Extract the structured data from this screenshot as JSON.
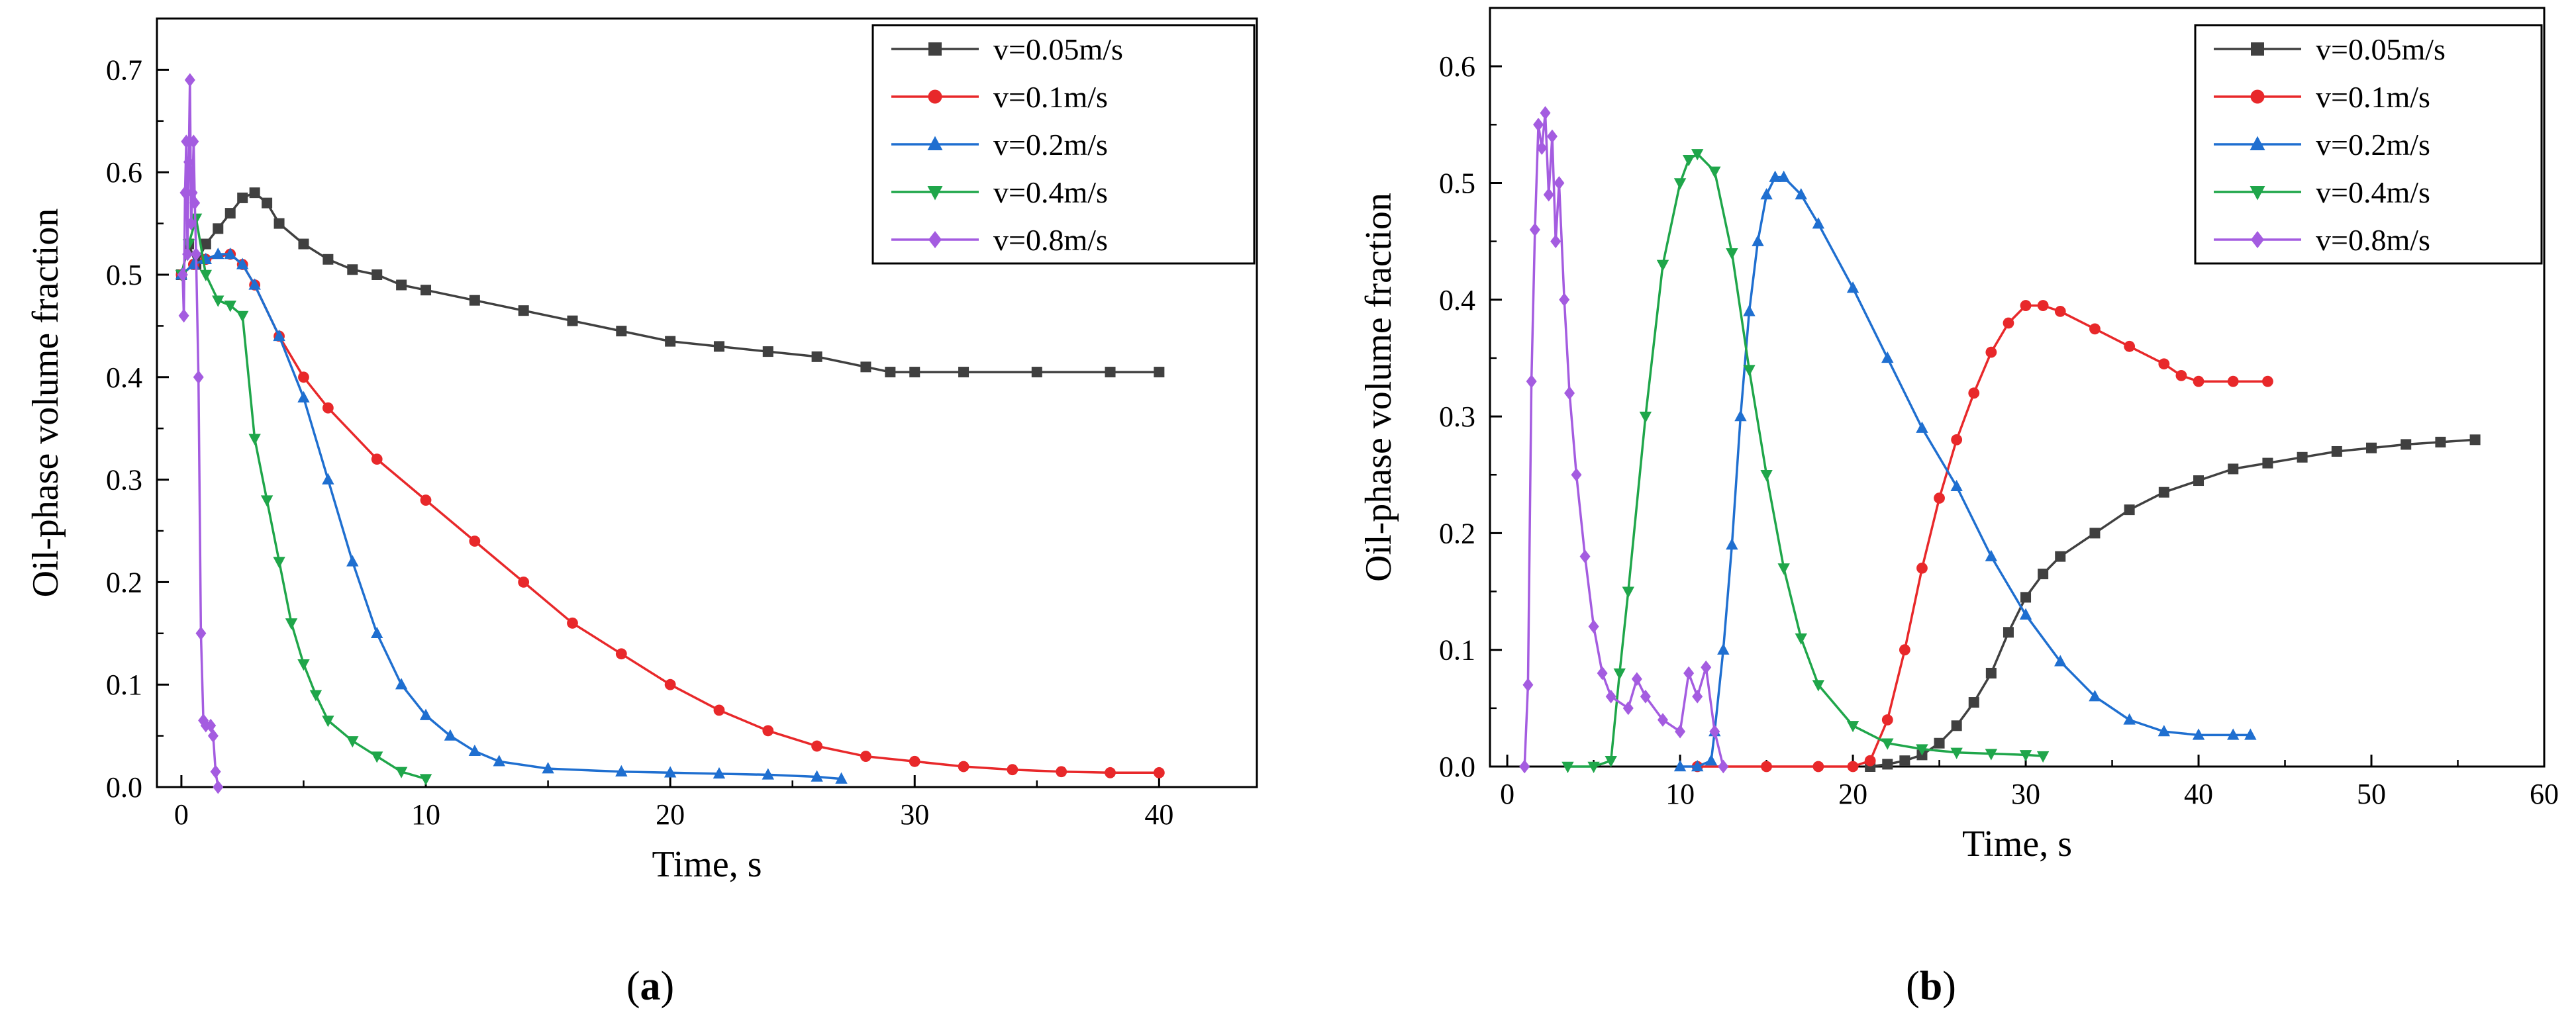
{
  "chart_data": [
    {
      "id": "a",
      "type": "line",
      "panel_label": "(a)",
      "xlabel": "Time, s",
      "ylabel": "Oil-phase volume fraction",
      "xlim": [
        -1,
        44
      ],
      "ylim": [
        0,
        0.75
      ],
      "xticks": [
        0,
        10,
        20,
        30,
        40
      ],
      "yticks": [
        0.0,
        0.1,
        0.2,
        0.3,
        0.4,
        0.5,
        0.6,
        0.7
      ],
      "ytick_labels": [
        "0.0",
        "0.1",
        "0.2",
        "0.3",
        "0.4",
        "0.5",
        "0.6",
        "0.7"
      ],
      "legend_position": "top-right",
      "series": [
        {
          "name": "v=0.05m/s",
          "color": "#404040",
          "marker": "square",
          "points": [
            [
              0,
              0.5
            ],
            [
              0.3,
              0.53
            ],
            [
              0.6,
              0.51
            ],
            [
              1,
              0.53
            ],
            [
              1.5,
              0.545
            ],
            [
              2,
              0.56
            ],
            [
              2.5,
              0.575
            ],
            [
              3,
              0.58
            ],
            [
              3.5,
              0.57
            ],
            [
              4,
              0.55
            ],
            [
              5,
              0.53
            ],
            [
              6,
              0.515
            ],
            [
              7,
              0.505
            ],
            [
              8,
              0.5
            ],
            [
              9,
              0.49
            ],
            [
              10,
              0.485
            ],
            [
              12,
              0.475
            ],
            [
              14,
              0.465
            ],
            [
              16,
              0.455
            ],
            [
              18,
              0.445
            ],
            [
              20,
              0.435
            ],
            [
              22,
              0.43
            ],
            [
              24,
              0.425
            ],
            [
              26,
              0.42
            ],
            [
              28,
              0.41
            ],
            [
              29,
              0.405
            ],
            [
              30,
              0.405
            ],
            [
              32,
              0.405
            ],
            [
              35,
              0.405
            ],
            [
              38,
              0.405
            ],
            [
              40,
              0.405
            ]
          ]
        },
        {
          "name": "v=0.1m/s",
          "color": "#e8282a",
          "marker": "circle",
          "points": [
            [
              0,
              0.5
            ],
            [
              0.5,
              0.51
            ],
            [
              1,
              0.515
            ],
            [
              2,
              0.52
            ],
            [
              2.5,
              0.51
            ],
            [
              3,
              0.49
            ],
            [
              4,
              0.44
            ],
            [
              5,
              0.4
            ],
            [
              6,
              0.37
            ],
            [
              8,
              0.32
            ],
            [
              10,
              0.28
            ],
            [
              12,
              0.24
            ],
            [
              14,
              0.2
            ],
            [
              16,
              0.16
            ],
            [
              18,
              0.13
            ],
            [
              20,
              0.1
            ],
            [
              22,
              0.075
            ],
            [
              24,
              0.055
            ],
            [
              26,
              0.04
            ],
            [
              28,
              0.03
            ],
            [
              30,
              0.025
            ],
            [
              32,
              0.02
            ],
            [
              34,
              0.017
            ],
            [
              36,
              0.015
            ],
            [
              38,
              0.014
            ],
            [
              40,
              0.014
            ]
          ]
        },
        {
          "name": "v=0.2m/s",
          "color": "#1f6fd0",
          "marker": "triangle-up",
          "points": [
            [
              0,
              0.5
            ],
            [
              0.5,
              0.51
            ],
            [
              1,
              0.515
            ],
            [
              1.5,
              0.52
            ],
            [
              2,
              0.52
            ],
            [
              2.5,
              0.51
            ],
            [
              3,
              0.49
            ],
            [
              4,
              0.44
            ],
            [
              5,
              0.38
            ],
            [
              6,
              0.3
            ],
            [
              7,
              0.22
            ],
            [
              8,
              0.15
            ],
            [
              9,
              0.1
            ],
            [
              10,
              0.07
            ],
            [
              11,
              0.05
            ],
            [
              12,
              0.035
            ],
            [
              13,
              0.025
            ],
            [
              15,
              0.018
            ],
            [
              18,
              0.015
            ],
            [
              20,
              0.014
            ],
            [
              22,
              0.013
            ],
            [
              24,
              0.012
            ],
            [
              26,
              0.01
            ],
            [
              27,
              0.008
            ]
          ]
        },
        {
          "name": "v=0.4m/s",
          "color": "#1fa64a",
          "marker": "triangle-down",
          "points": [
            [
              0,
              0.5
            ],
            [
              0.3,
              0.53
            ],
            [
              0.6,
              0.555
            ],
            [
              1,
              0.5
            ],
            [
              1.5,
              0.475
            ],
            [
              2,
              0.47
            ],
            [
              2.5,
              0.46
            ],
            [
              3,
              0.34
            ],
            [
              3.5,
              0.28
            ],
            [
              4,
              0.22
            ],
            [
              4.5,
              0.16
            ],
            [
              5,
              0.12
            ],
            [
              5.5,
              0.09
            ],
            [
              6,
              0.065
            ],
            [
              7,
              0.045
            ],
            [
              8,
              0.03
            ],
            [
              9,
              0.015
            ],
            [
              10,
              0.008
            ]
          ]
        },
        {
          "name": "v=0.8m/s",
          "color": "#a45ce0",
          "marker": "diamond",
          "points": [
            [
              0.05,
              0.5
            ],
            [
              0.1,
              0.46
            ],
            [
              0.15,
              0.58
            ],
            [
              0.2,
              0.63
            ],
            [
              0.25,
              0.52
            ],
            [
              0.3,
              0.61
            ],
            [
              0.35,
              0.69
            ],
            [
              0.4,
              0.55
            ],
            [
              0.45,
              0.58
            ],
            [
              0.5,
              0.63
            ],
            [
              0.55,
              0.57
            ],
            [
              0.6,
              0.52
            ],
            [
              0.7,
              0.4
            ],
            [
              0.8,
              0.15
            ],
            [
              0.9,
              0.065
            ],
            [
              1.0,
              0.06
            ],
            [
              1.2,
              0.06
            ],
            [
              1.3,
              0.05
            ],
            [
              1.4,
              0.015
            ],
            [
              1.5,
              0.0
            ]
          ]
        }
      ]
    },
    {
      "id": "b",
      "type": "line",
      "panel_label": "(b)",
      "xlabel": "Time, s",
      "ylabel": "Oil-phase volume fraction",
      "xlim": [
        -1,
        60
      ],
      "ylim": [
        0,
        0.65
      ],
      "xticks": [
        0,
        10,
        20,
        30,
        40,
        50,
        60
      ],
      "yticks": [
        0.0,
        0.1,
        0.2,
        0.3,
        0.4,
        0.5,
        0.6
      ],
      "ytick_labels": [
        "0.0",
        "0.1",
        "0.2",
        "0.3",
        "0.4",
        "0.5",
        "0.6"
      ],
      "legend_position": "top-right",
      "series": [
        {
          "name": "v=0.05m/s",
          "color": "#404040",
          "marker": "square",
          "points": [
            [
              21,
              0.0
            ],
            [
              22,
              0.002
            ],
            [
              23,
              0.005
            ],
            [
              24,
              0.01
            ],
            [
              25,
              0.02
            ],
            [
              26,
              0.035
            ],
            [
              27,
              0.055
            ],
            [
              28,
              0.08
            ],
            [
              29,
              0.115
            ],
            [
              30,
              0.145
            ],
            [
              31,
              0.165
            ],
            [
              32,
              0.18
            ],
            [
              34,
              0.2
            ],
            [
              36,
              0.22
            ],
            [
              38,
              0.235
            ],
            [
              40,
              0.245
            ],
            [
              42,
              0.255
            ],
            [
              44,
              0.26
            ],
            [
              46,
              0.265
            ],
            [
              48,
              0.27
            ],
            [
              50,
              0.273
            ],
            [
              52,
              0.276
            ],
            [
              54,
              0.278
            ],
            [
              56,
              0.28
            ]
          ]
        },
        {
          "name": "v=0.1m/s",
          "color": "#e8282a",
          "marker": "circle",
          "points": [
            [
              11,
              0.0
            ],
            [
              15,
              0.0
            ],
            [
              18,
              0.0
            ],
            [
              20,
              0.0
            ],
            [
              21,
              0.005
            ],
            [
              22,
              0.04
            ],
            [
              23,
              0.1
            ],
            [
              24,
              0.17
            ],
            [
              25,
              0.23
            ],
            [
              26,
              0.28
            ],
            [
              27,
              0.32
            ],
            [
              28,
              0.355
            ],
            [
              29,
              0.38
            ],
            [
              30,
              0.395
            ],
            [
              31,
              0.395
            ],
            [
              32,
              0.39
            ],
            [
              34,
              0.375
            ],
            [
              36,
              0.36
            ],
            [
              38,
              0.345
            ],
            [
              39,
              0.335
            ],
            [
              40,
              0.33
            ],
            [
              42,
              0.33
            ],
            [
              44,
              0.33
            ]
          ]
        },
        {
          "name": "v=0.2m/s",
          "color": "#1f6fd0",
          "marker": "triangle-up",
          "points": [
            [
              10,
              0.0
            ],
            [
              11,
              0.0
            ],
            [
              11.8,
              0.005
            ],
            [
              12,
              0.03
            ],
            [
              12.5,
              0.1
            ],
            [
              13,
              0.19
            ],
            [
              13.5,
              0.3
            ],
            [
              14,
              0.39
            ],
            [
              14.5,
              0.45
            ],
            [
              15,
              0.49
            ],
            [
              15.5,
              0.505
            ],
            [
              16,
              0.505
            ],
            [
              17,
              0.49
            ],
            [
              18,
              0.465
            ],
            [
              20,
              0.41
            ],
            [
              22,
              0.35
            ],
            [
              24,
              0.29
            ],
            [
              26,
              0.24
            ],
            [
              28,
              0.18
            ],
            [
              30,
              0.13
            ],
            [
              32,
              0.09
            ],
            [
              34,
              0.06
            ],
            [
              36,
              0.04
            ],
            [
              38,
              0.03
            ],
            [
              40,
              0.027
            ],
            [
              42,
              0.027
            ],
            [
              43,
              0.027
            ]
          ]
        },
        {
          "name": "v=0.4m/s",
          "color": "#1fa64a",
          "marker": "triangle-down",
          "points": [
            [
              3.5,
              0.0
            ],
            [
              5,
              0.0
            ],
            [
              6,
              0.005
            ],
            [
              6.5,
              0.08
            ],
            [
              7,
              0.15
            ],
            [
              8,
              0.3
            ],
            [
              9,
              0.43
            ],
            [
              10,
              0.5
            ],
            [
              10.5,
              0.52
            ],
            [
              11,
              0.525
            ],
            [
              12,
              0.51
            ],
            [
              13,
              0.44
            ],
            [
              14,
              0.34
            ],
            [
              15,
              0.25
            ],
            [
              16,
              0.17
            ],
            [
              17,
              0.11
            ],
            [
              18,
              0.07
            ],
            [
              20,
              0.035
            ],
            [
              22,
              0.02
            ],
            [
              24,
              0.015
            ],
            [
              26,
              0.012
            ],
            [
              28,
              0.011
            ],
            [
              30,
              0.01
            ],
            [
              31,
              0.009
            ]
          ]
        },
        {
          "name": "v=0.8m/s",
          "color": "#a45ce0",
          "marker": "diamond",
          "points": [
            [
              1.0,
              0.0
            ],
            [
              1.2,
              0.07
            ],
            [
              1.4,
              0.33
            ],
            [
              1.6,
              0.46
            ],
            [
              1.8,
              0.55
            ],
            [
              2.0,
              0.53
            ],
            [
              2.2,
              0.56
            ],
            [
              2.4,
              0.49
            ],
            [
              2.6,
              0.54
            ],
            [
              2.8,
              0.45
            ],
            [
              3.0,
              0.5
            ],
            [
              3.3,
              0.4
            ],
            [
              3.6,
              0.32
            ],
            [
              4,
              0.25
            ],
            [
              4.5,
              0.18
            ],
            [
              5,
              0.12
            ],
            [
              5.5,
              0.08
            ],
            [
              6,
              0.06
            ],
            [
              7,
              0.05
            ],
            [
              7.5,
              0.075
            ],
            [
              8,
              0.06
            ],
            [
              9,
              0.04
            ],
            [
              10,
              0.03
            ],
            [
              10.5,
              0.08
            ],
            [
              11,
              0.06
            ],
            [
              11.5,
              0.085
            ],
            [
              12,
              0.03
            ],
            [
              12.5,
              0.0
            ]
          ]
        }
      ]
    }
  ]
}
